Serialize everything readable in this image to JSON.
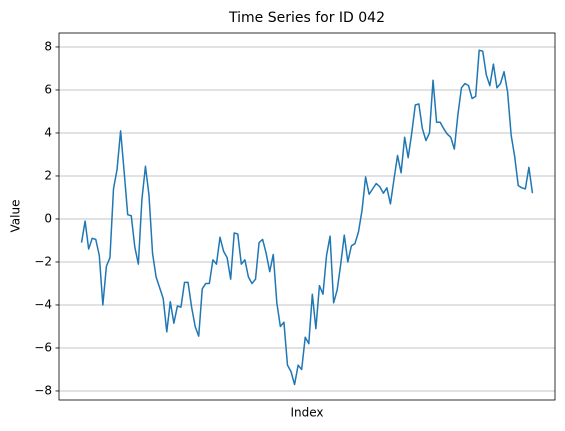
{
  "chart_data": {
    "type": "line",
    "title": "Time Series for ID 042",
    "xlabel": "Index",
    "ylabel": "Value",
    "color": "#1f77b4",
    "grid": "y",
    "xlim": [
      -6.35,
      133.35
    ],
    "ylim": [
      -8.42,
      8.65
    ],
    "yticks": [
      {
        "value": -8,
        "label": "−8"
      },
      {
        "value": -6,
        "label": "−6"
      },
      {
        "value": -4,
        "label": "−4"
      },
      {
        "value": -2,
        "label": "−2"
      },
      0,
      2,
      4,
      6,
      8
    ],
    "values": [
      -1.1,
      -0.1,
      -1.4,
      -0.9,
      -0.95,
      -1.7,
      -4.0,
      -2.2,
      -1.8,
      1.4,
      2.3,
      4.1,
      2.2,
      0.2,
      0.15,
      -1.3,
      -2.1,
      0.9,
      2.45,
      1.1,
      -1.6,
      -2.7,
      -3.2,
      -3.7,
      -5.25,
      -3.85,
      -4.85,
      -4.05,
      -4.1,
      -2.95,
      -2.95,
      -4.1,
      -5.0,
      -5.45,
      -3.25,
      -3.0,
      -3.0,
      -1.9,
      -2.1,
      -0.85,
      -1.5,
      -1.8,
      -2.8,
      -0.65,
      -0.7,
      -2.1,
      -1.9,
      -2.7,
      -3.0,
      -2.8,
      -1.1,
      -0.95,
      -1.6,
      -2.45,
      -1.65,
      -3.9,
      -5.0,
      -4.8,
      -6.8,
      -7.1,
      -7.7,
      -6.8,
      -7.0,
      -5.5,
      -5.8,
      -3.5,
      -5.1,
      -3.1,
      -3.5,
      -1.7,
      -0.8,
      -3.9,
      -3.3,
      -2.1,
      -0.75,
      -2.0,
      -1.25,
      -1.15,
      -0.6,
      0.4,
      1.95,
      1.15,
      1.4,
      1.65,
      1.5,
      1.2,
      1.45,
      0.7,
      1.85,
      2.95,
      2.15,
      3.8,
      2.85,
      4.0,
      5.3,
      5.35,
      4.2,
      3.65,
      4.0,
      6.45,
      4.5,
      4.5,
      4.2,
      3.95,
      3.8,
      3.25,
      4.85,
      6.1,
      6.3,
      6.2,
      5.6,
      5.7,
      7.85,
      7.8,
      6.7,
      6.2,
      7.2,
      6.1,
      6.3,
      6.85,
      5.9,
      3.9,
      2.9,
      1.55,
      1.45,
      1.4,
      2.4,
      1.2
    ]
  }
}
